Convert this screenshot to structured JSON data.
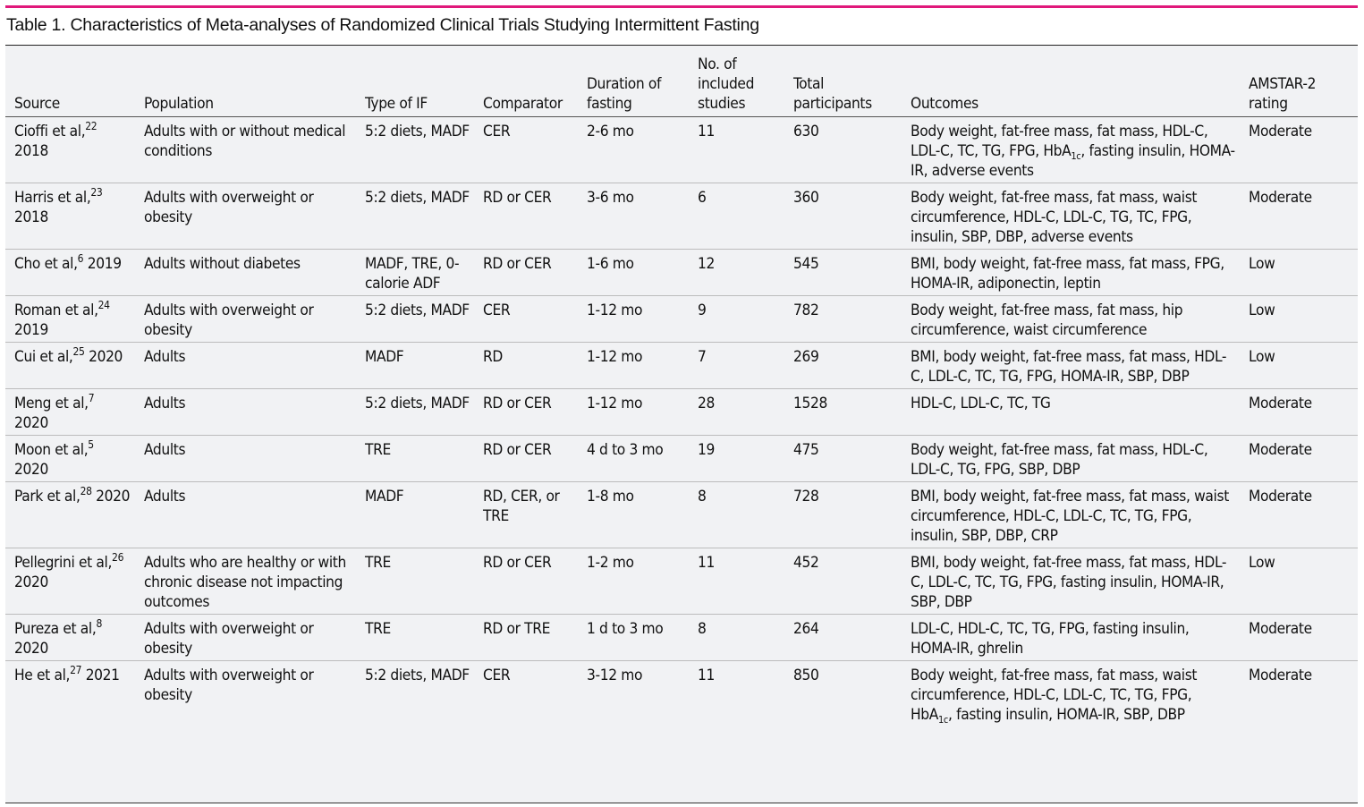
{
  "title": "Table 1. Characteristics of Meta-analyses of Randomized Clinical Trials Studying Intermittent Fasting",
  "colors": {
    "accent_rule": "#e0187a",
    "table_background": "#f1f2f4",
    "text": "#111111"
  },
  "columns": [
    "Source",
    "Population",
    "Type of IF",
    "Comparator",
    "Duration of fasting",
    "No. of included studies",
    "Total participants",
    "Outcomes",
    "AMSTAR-2 rating"
  ],
  "rows": [
    {
      "source_name": "Cioffi et al,",
      "source_ref": "22",
      "source_year": "2018",
      "population": "Adults with or without medical conditions",
      "type": "5:2 diets, MADF",
      "comparator": "CER",
      "duration": "2-6 mo",
      "studies": "11",
      "participants": "630",
      "outcomes_before": "Body weight, fat-free mass, fat mass, HDL-C, LDL-C, TC, TG, FPG, HbA",
      "outcomes_sub": "1c",
      "outcomes_after": ", fasting insulin, HOMA-IR, adverse events",
      "rating": "Moderate"
    },
    {
      "source_name": "Harris et al,",
      "source_ref": "23",
      "source_year": "2018",
      "population": "Adults with overweight or obesity",
      "type": "5:2 diets, MADF",
      "comparator": "RD or CER",
      "duration": "3-6 mo",
      "studies": "6",
      "participants": "360",
      "outcomes_before": "Body weight, fat-free mass, fat mass, waist circumference, HDL-C, LDL-C, TG, TC, FPG, insulin, SBP, DBP, adverse events",
      "outcomes_sub": "",
      "outcomes_after": "",
      "rating": "Moderate"
    },
    {
      "source_name": "Cho et al,",
      "source_ref": "6",
      "source_year": "2019",
      "population": "Adults without diabetes",
      "type": "MADF, TRE, 0-calorie ADF",
      "comparator": "RD or CER",
      "duration": "1-6 mo",
      "studies": "12",
      "participants": "545",
      "outcomes_before": "BMI, body weight, fat-free mass, fat mass, FPG, HOMA-IR, adiponectin, leptin",
      "outcomes_sub": "",
      "outcomes_after": "",
      "rating": "Low"
    },
    {
      "source_name": "Roman et al,",
      "source_ref": "24",
      "source_year": "2019",
      "population": "Adults with overweight or obesity",
      "type": "5:2 diets, MADF",
      "comparator": "CER",
      "duration": "1-12 mo",
      "studies": "9",
      "participants": "782",
      "outcomes_before": "Body weight, fat-free mass, fat mass, hip circumference, waist circumference",
      "outcomes_sub": "",
      "outcomes_after": "",
      "rating": "Low"
    },
    {
      "source_name": "Cui et al,",
      "source_ref": "25",
      "source_year": "2020",
      "population": "Adults",
      "type": "MADF",
      "comparator": "RD",
      "duration": "1-12 mo",
      "studies": "7",
      "participants": "269",
      "outcomes_before": "BMI, body weight, fat-free mass, fat mass, HDL-C, LDL-C, TC, TG, FPG, HOMA-IR, SBP, DBP",
      "outcomes_sub": "",
      "outcomes_after": "",
      "rating": "Low"
    },
    {
      "source_name": "Meng et al,",
      "source_ref": "7",
      "source_year": "2020",
      "population": "Adults",
      "type": "5:2 diets, MADF",
      "comparator": "RD or CER",
      "duration": "1-12 mo",
      "studies": "28",
      "participants": "1528",
      "outcomes_before": "HDL-C, LDL-C, TC, TG",
      "outcomes_sub": "",
      "outcomes_after": "",
      "rating": "Moderate"
    },
    {
      "source_name": "Moon et al,",
      "source_ref": "5",
      "source_year": "2020",
      "population": "Adults",
      "type": "TRE",
      "comparator": "RD or CER",
      "duration": "4 d to 3 mo",
      "studies": "19",
      "participants": "475",
      "outcomes_before": "Body weight, fat-free mass, fat mass, HDL-C, LDL-C, TG, FPG, SBP, DBP",
      "outcomes_sub": "",
      "outcomes_after": "",
      "rating": "Moderate"
    },
    {
      "source_name": "Park et al,",
      "source_ref": "28",
      "source_year": "2020",
      "population": "Adults",
      "type": "MADF",
      "comparator": "RD, CER, or TRE",
      "duration": "1-8 mo",
      "studies": "8",
      "participants": "728",
      "outcomes_before": "BMI, body weight, fat-free mass, fat mass, waist circumference, HDL-C, LDL-C, TC, TG, FPG, insulin, SBP, DBP, CRP",
      "outcomes_sub": "",
      "outcomes_after": "",
      "rating": "Moderate"
    },
    {
      "source_name": "Pellegrini et al,",
      "source_ref": "26",
      "source_year": "2020",
      "population": "Adults who are healthy or with chronic disease not impacting outcomes",
      "type": "TRE",
      "comparator": "RD or CER",
      "duration": "1-2 mo",
      "studies": "11",
      "participants": "452",
      "outcomes_before": "BMI, body weight, fat-free mass, fat mass, HDL-C, LDL-C, TC, TG, FPG, fasting insulin, HOMA-IR, SBP, DBP",
      "outcomes_sub": "",
      "outcomes_after": "",
      "rating": "Low"
    },
    {
      "source_name": "Pureza et al,",
      "source_ref": "8",
      "source_year": "2020",
      "population": "Adults with overweight or obesity",
      "type": "TRE",
      "comparator": "RD or TRE",
      "duration": "1 d to 3 mo",
      "studies": "8",
      "participants": "264",
      "outcomes_before": "LDL-C, HDL-C, TC, TG, FPG, fasting insulin, HOMA-IR, ghrelin",
      "outcomes_sub": "",
      "outcomes_after": "",
      "rating": "Moderate"
    },
    {
      "source_name": "He et al,",
      "source_ref": "27",
      "source_year": "2021",
      "population": "Adults with overweight or obesity",
      "type": "5:2 diets, MADF",
      "comparator": "CER",
      "duration": "3-12 mo",
      "studies": "11",
      "participants": "850",
      "outcomes_before": "Body weight, fat-free mass, fat mass, waist circumference, HDL-C, LDL-C, TC, TG, FPG, HbA",
      "outcomes_sub": "1c",
      "outcomes_after": ", fasting insulin, HOMA-IR, SBP, DBP",
      "rating": "Moderate"
    }
  ]
}
